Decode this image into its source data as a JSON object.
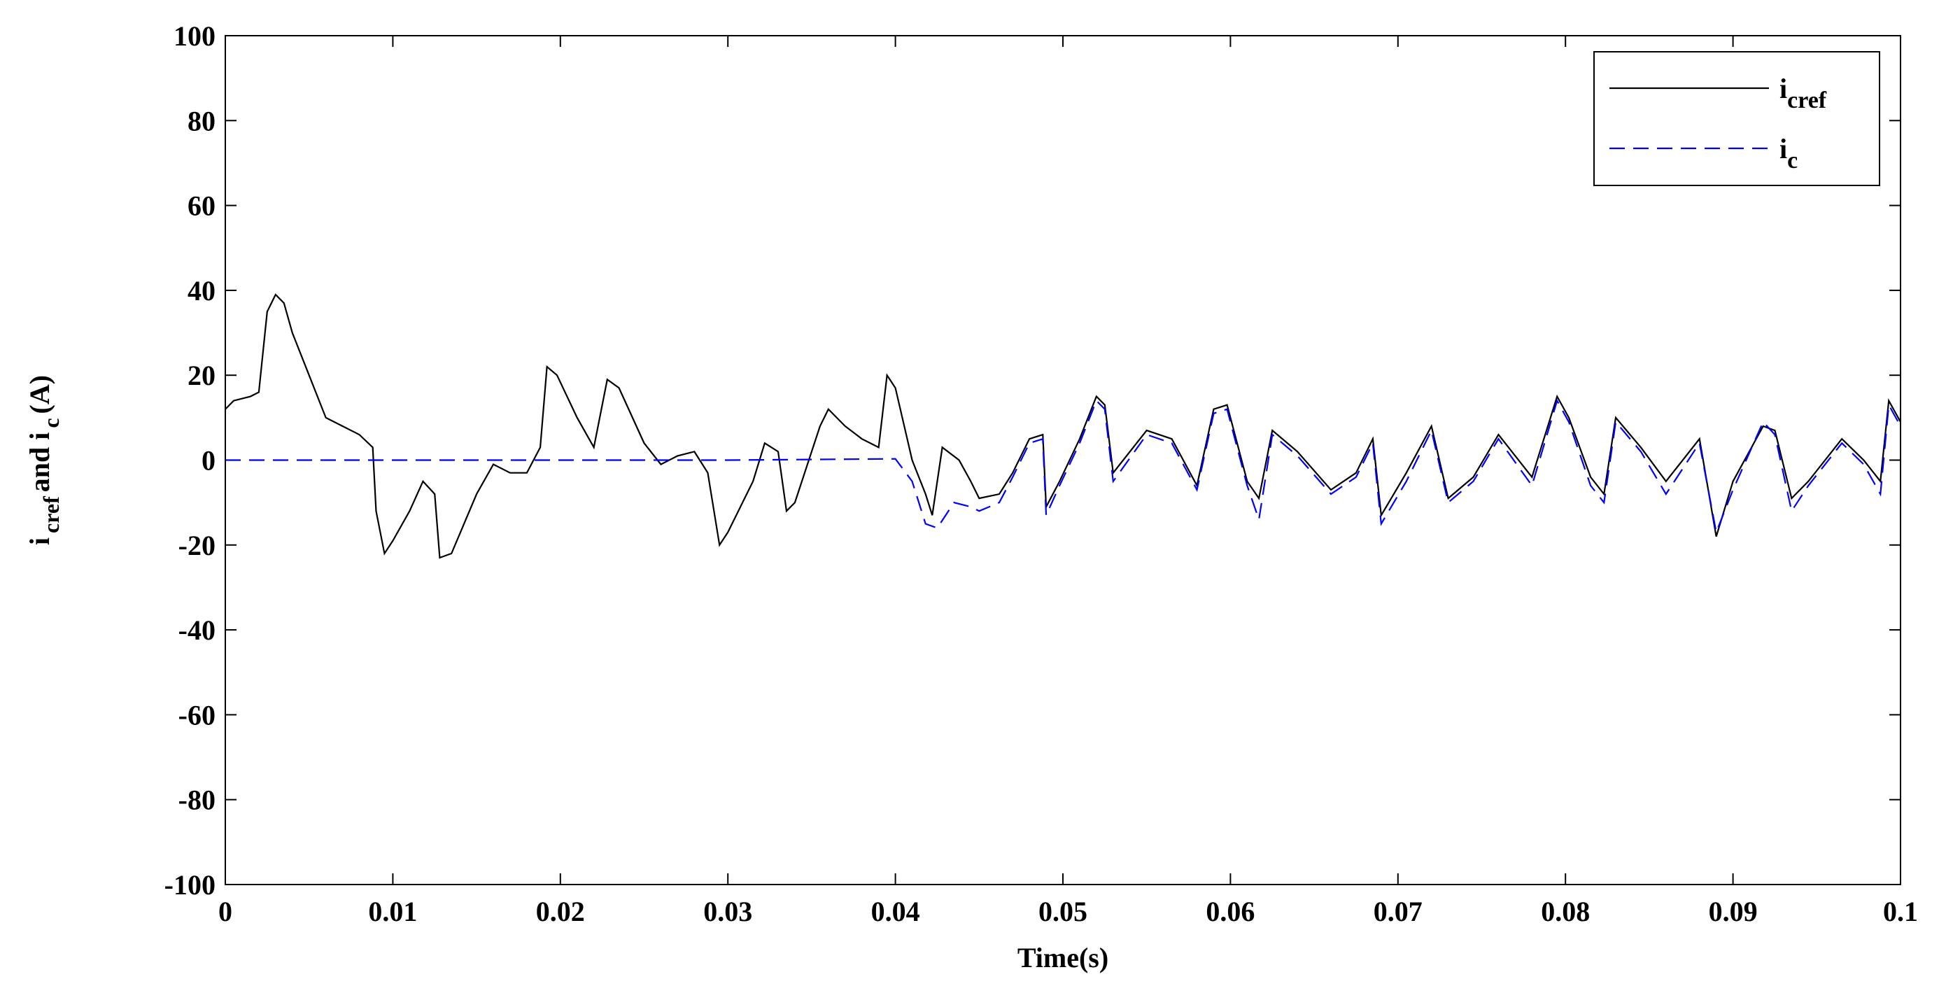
{
  "chart_data": {
    "type": "line",
    "xlabel": "Time(s)",
    "ylabel": [
      {
        "text": "i",
        "sub": false
      },
      {
        "text": "cref",
        "sub": true
      },
      {
        "text": "and i",
        "sub": false
      },
      {
        "text": "c",
        "sub": true
      },
      {
        "text": "(A)",
        "sub": false
      }
    ],
    "xlim": [
      0,
      0.1
    ],
    "ylim": [
      -100,
      100
    ],
    "xticks": [
      0,
      0.01,
      0.02,
      0.03,
      0.04,
      0.05,
      0.06,
      0.07,
      0.08,
      0.09,
      0.1
    ],
    "yticks": [
      -100,
      -80,
      -60,
      -40,
      -20,
      0,
      20,
      40,
      60,
      80,
      100
    ],
    "legend": "upper right",
    "series": [
      {
        "name": "i",
        "subscript": "cref",
        "color": "#000000",
        "dashed": false,
        "x": [
          0,
          0.0005,
          0.0015,
          0.002,
          0.0025,
          0.003,
          0.0035,
          0.004,
          0.005,
          0.006,
          0.007,
          0.008,
          0.0088,
          0.009,
          0.0095,
          0.01,
          0.011,
          0.0118,
          0.0125,
          0.0128,
          0.0135,
          0.015,
          0.016,
          0.017,
          0.018,
          0.0188,
          0.0192,
          0.0198,
          0.021,
          0.022,
          0.0228,
          0.0235,
          0.025,
          0.026,
          0.027,
          0.028,
          0.0288,
          0.0295,
          0.03,
          0.0315,
          0.0322,
          0.033,
          0.0335,
          0.034,
          0.0355,
          0.036,
          0.037,
          0.038,
          0.039,
          0.0395,
          0.04,
          0.041,
          0.0418,
          0.0422,
          0.0428,
          0.0438,
          0.0445,
          0.045,
          0.0462,
          0.047,
          0.048,
          0.0488,
          0.049,
          0.0498,
          0.051,
          0.052,
          0.0525,
          0.053,
          0.055,
          0.0565,
          0.058,
          0.059,
          0.0598,
          0.061,
          0.0617,
          0.0625,
          0.064,
          0.066,
          0.0675,
          0.0685,
          0.069,
          0.0705,
          0.072,
          0.073,
          0.0745,
          0.076,
          0.078,
          0.0795,
          0.0802,
          0.0815,
          0.0823,
          0.083,
          0.0845,
          0.086,
          0.088,
          0.089,
          0.09,
          0.0918,
          0.0925,
          0.0935,
          0.0945,
          0.0965,
          0.0978,
          0.0988,
          0.0993,
          0.1
        ],
        "values": [
          12,
          14,
          15,
          16,
          35,
          39,
          37,
          30,
          20,
          10,
          8,
          6,
          3,
          -12,
          -22,
          -19,
          -12,
          -5,
          -8,
          -23,
          -22,
          -8,
          -1,
          -3,
          -3,
          3,
          22,
          20,
          10,
          3,
          19,
          17,
          4,
          -1,
          1,
          2,
          -3,
          -20,
          -17,
          -5,
          4,
          2,
          -12,
          -10,
          8,
          12,
          8,
          5,
          3,
          20,
          17,
          0,
          -8,
          -13,
          3,
          0,
          -5,
          -9,
          -8,
          -3,
          5,
          6,
          -11,
          -5,
          5,
          15,
          13,
          -3,
          7,
          5,
          -6,
          12,
          13,
          -5,
          -9,
          7,
          2,
          -7,
          -3,
          5,
          -13,
          -3,
          8,
          -9,
          -4,
          6,
          -4,
          15,
          10,
          -4,
          -8,
          10,
          3,
          -5,
          5,
          -18,
          -5,
          8,
          7,
          -9,
          -5,
          5,
          0,
          -5,
          14,
          9
        ]
      },
      {
        "name": "i",
        "subscript": "c",
        "color": "#0000ff",
        "dashed": true,
        "x": [
          0,
          0.01,
          0.02,
          0.03,
          0.04,
          0.041,
          0.0418,
          0.0425,
          0.0435,
          0.0445,
          0.045,
          0.0462,
          0.047,
          0.048,
          0.0488,
          0.049,
          0.0498,
          0.051,
          0.052,
          0.0525,
          0.053,
          0.055,
          0.0565,
          0.058,
          0.059,
          0.0598,
          0.061,
          0.0617,
          0.0625,
          0.064,
          0.066,
          0.0675,
          0.0685,
          0.069,
          0.0705,
          0.072,
          0.073,
          0.0745,
          0.076,
          0.078,
          0.0795,
          0.0802,
          0.0815,
          0.0823,
          0.083,
          0.0845,
          0.086,
          0.088,
          0.089,
          0.09,
          0.0918,
          0.0925,
          0.0935,
          0.0945,
          0.0965,
          0.0978,
          0.0988,
          0.0993,
          0.1
        ],
        "values": [
          0,
          0,
          0,
          0,
          0.3,
          -5,
          -15,
          -16,
          -10,
          -11,
          -12,
          -10,
          -4,
          4,
          5,
          -13,
          -6,
          4,
          14,
          12,
          -5,
          6,
          4,
          -7,
          11,
          12,
          -6,
          -14,
          6,
          1,
          -8,
          -4,
          4,
          -15,
          -5,
          7,
          -10,
          -5,
          5,
          -6,
          14,
          9,
          -6,
          -10,
          9,
          2,
          -8,
          4,
          -17,
          -7,
          9,
          6,
          -12,
          -6,
          4,
          -1,
          -8,
          13,
          8
        ]
      }
    ]
  }
}
